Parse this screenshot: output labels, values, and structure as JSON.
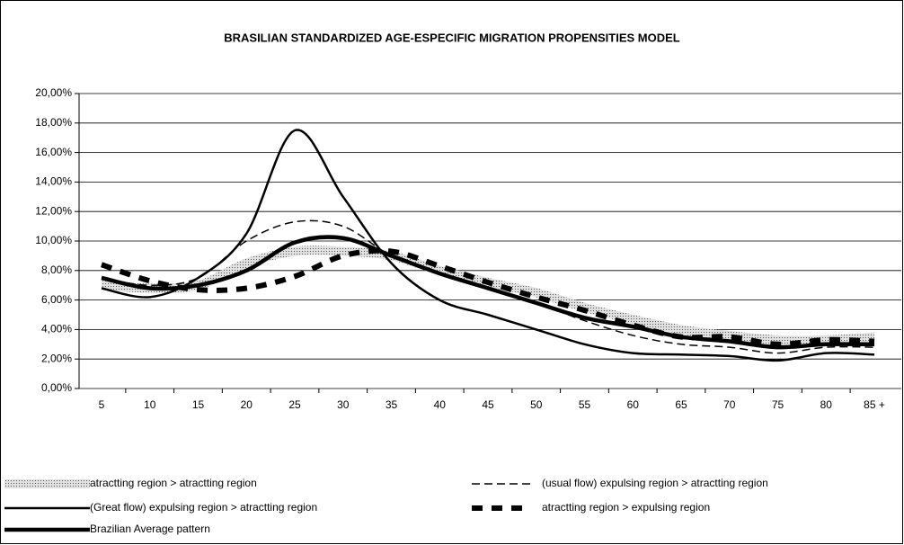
{
  "chart_data": {
    "type": "line",
    "title": "BRASILIAN STANDARDIZED AGE-ESPECIFIC MIGRATION PROPENSITIES MODEL",
    "categories": [
      "5",
      "10",
      "15",
      "20",
      "25",
      "30",
      "35",
      "40",
      "45",
      "50",
      "55",
      "60",
      "65",
      "70",
      "75",
      "80",
      "85 +"
    ],
    "ylim": [
      0,
      20
    ],
    "yticks": [
      {
        "value": 0,
        "label": "0,00%"
      },
      {
        "value": 2,
        "label": "2,00%"
      },
      {
        "value": 4,
        "label": "4,00%"
      },
      {
        "value": 6,
        "label": "6,00%"
      },
      {
        "value": 8,
        "label": "8,00%"
      },
      {
        "value": 10,
        "label": "10,00%"
      },
      {
        "value": 12,
        "label": "12,00%"
      },
      {
        "value": 14,
        "label": "14,00%"
      },
      {
        "value": 16,
        "label": "16,00%"
      },
      {
        "value": 18,
        "label": "18,00%"
      },
      {
        "value": 20,
        "label": "20,00%"
      }
    ],
    "grid": true,
    "series": [
      {
        "name": "atractting region > atractting region",
        "color": "#b0b0b0",
        "values": [
          7.0,
          6.8,
          7.0,
          8.5,
          9.3,
          9.3,
          9.0,
          8.0,
          7.2,
          6.5,
          5.5,
          4.7,
          4.0,
          3.6,
          3.3,
          3.3,
          3.5
        ]
      },
      {
        "name": "(usual flow) expulsing region  > atractting region",
        "color": "#000000",
        "values": [
          7.5,
          7.0,
          7.5,
          10.0,
          11.3,
          11.0,
          9.0,
          7.8,
          6.8,
          5.8,
          4.6,
          3.6,
          3.0,
          2.8,
          2.4,
          2.8,
          2.8
        ]
      },
      {
        "name": "(Great flow) expulsing region > atractting region",
        "color": "#000000",
        "values": [
          6.8,
          6.2,
          7.5,
          10.5,
          17.5,
          13.0,
          8.5,
          6.0,
          5.0,
          4.0,
          3.0,
          2.4,
          2.3,
          2.2,
          1.9,
          2.4,
          2.3
        ]
      },
      {
        "name": "atractting region > expulsing region",
        "color": "#000000",
        "values": [
          8.4,
          7.3,
          6.7,
          6.8,
          7.6,
          9.0,
          9.3,
          8.3,
          7.2,
          6.2,
          5.3,
          4.3,
          3.5,
          3.5,
          3.0,
          3.3,
          3.2
        ]
      },
      {
        "name": "Brazilian Average pattern",
        "color": "#000000",
        "values": [
          7.5,
          6.8,
          7.0,
          8.0,
          9.9,
          10.2,
          9.0,
          7.8,
          6.8,
          5.8,
          4.8,
          4.2,
          3.5,
          3.2,
          2.8,
          3.0,
          3.0
        ]
      }
    ]
  }
}
